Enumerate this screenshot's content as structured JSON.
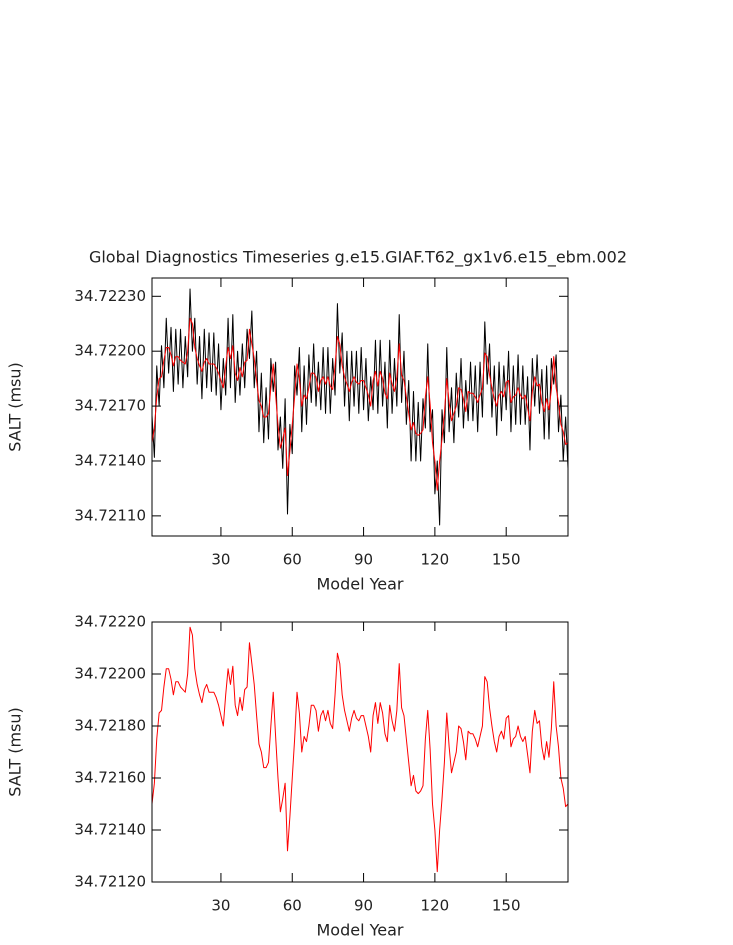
{
  "chart_data": [
    {
      "type": "line",
      "title": "Global Diagnostics Timeseries g.e15.GIAF.T62_gx1v6.e15_ebm.002",
      "xlabel": "Model Year",
      "ylabel": "SALT (msu)",
      "xlim": [
        1,
        176
      ],
      "xticks": [
        30,
        60,
        90,
        120,
        150
      ],
      "ylim": [
        34.72099,
        34.7224
      ],
      "yticks": [
        {
          "value": 34.7211,
          "label": "34.72110"
        },
        {
          "value": 34.7214,
          "label": "34.72140"
        },
        {
          "value": 34.7217,
          "label": "34.72170"
        },
        {
          "value": 34.722,
          "label": "34.72200"
        },
        {
          "value": 34.7223,
          "label": "34.72230"
        }
      ],
      "x": [
        1,
        2,
        3,
        4,
        5,
        6,
        7,
        8,
        9,
        10,
        11,
        12,
        13,
        14,
        15,
        16,
        17,
        18,
        19,
        20,
        21,
        22,
        23,
        24,
        25,
        26,
        27,
        28,
        29,
        30,
        31,
        32,
        33,
        34,
        35,
        36,
        37,
        38,
        39,
        40,
        41,
        42,
        43,
        44,
        45,
        46,
        47,
        48,
        49,
        50,
        51,
        52,
        53,
        54,
        55,
        56,
        57,
        58,
        59,
        60,
        61,
        62,
        63,
        64,
        65,
        66,
        67,
        68,
        69,
        70,
        71,
        72,
        73,
        74,
        75,
        76,
        77,
        78,
        79,
        80,
        81,
        82,
        83,
        84,
        85,
        86,
        87,
        88,
        89,
        90,
        91,
        92,
        93,
        94,
        95,
        96,
        97,
        98,
        99,
        100,
        101,
        102,
        103,
        104,
        105,
        106,
        107,
        108,
        109,
        110,
        111,
        112,
        113,
        114,
        115,
        116,
        117,
        118,
        119,
        120,
        121,
        122,
        123,
        124,
        125,
        126,
        127,
        128,
        129,
        130,
        131,
        132,
        133,
        134,
        135,
        136,
        137,
        138,
        139,
        140,
        141,
        142,
        143,
        144,
        145,
        146,
        147,
        148,
        149,
        150,
        151,
        152,
        153,
        154,
        155,
        156,
        157,
        158,
        159,
        160,
        161,
        162,
        163,
        164,
        165,
        166,
        167,
        168,
        169,
        170,
        171,
        172,
        173,
        174,
        175,
        176
      ],
      "series": [
        {
          "color": "#000000",
          "values": [
            34.72165,
            34.72142,
            34.72192,
            34.7217,
            34.72203,
            34.7218,
            34.72218,
            34.72188,
            34.72213,
            34.72178,
            34.72212,
            34.72182,
            34.72212,
            34.7218,
            34.72208,
            34.72186,
            34.72234,
            34.722,
            34.72218,
            34.72182,
            34.72208,
            34.72174,
            34.72212,
            34.7218,
            34.7221,
            34.72178,
            34.7221,
            34.72176,
            34.72204,
            34.72168,
            34.72196,
            34.72176,
            34.72218,
            34.7218,
            34.7222,
            34.72172,
            34.722,
            34.72176,
            34.72204,
            34.7218,
            34.72212,
            34.72196,
            34.72222,
            34.7218,
            34.722,
            34.72156,
            34.72188,
            34.7215,
            34.7218,
            34.72152,
            34.72196,
            34.72178,
            34.72194,
            34.72146,
            34.72164,
            34.72136,
            34.72174,
            34.72111,
            34.7216,
            34.72144,
            34.72192,
            34.72176,
            34.72202,
            34.72156,
            34.72192,
            34.7216,
            34.72198,
            34.72172,
            34.72204,
            34.7217,
            34.72194,
            34.72168,
            34.72202,
            34.72166,
            34.72202,
            34.72166,
            34.72196,
            34.72176,
            34.72226,
            34.72188,
            34.7221,
            34.7217,
            34.722,
            34.72162,
            34.722,
            34.7217,
            34.722,
            34.72166,
            34.72202,
            34.72168,
            34.72196,
            34.72162,
            34.72186,
            34.72168,
            34.72206,
            34.72166,
            34.72206,
            34.7217,
            34.72194,
            34.72158,
            34.72206,
            34.72166,
            34.72196,
            34.7217,
            34.7222,
            34.72172,
            34.722,
            34.7216,
            34.72184,
            34.7214,
            34.72178,
            34.7214,
            34.72172,
            34.7214,
            34.72174,
            34.72158,
            34.72204,
            34.72156,
            34.72168,
            34.72122,
            34.7214,
            34.72105,
            34.72168,
            34.7215,
            34.72202,
            34.72156,
            34.7218,
            34.7215,
            34.72188,
            34.72164,
            34.72196,
            34.72158,
            34.72184,
            34.72162,
            34.72194,
            34.72162,
            34.72192,
            34.72156,
            34.72194,
            34.72164,
            34.72216,
            34.72182,
            34.72204,
            34.72164,
            34.72192,
            34.72154,
            34.72194,
            34.72162,
            34.72192,
            34.72168,
            34.722,
            34.72156,
            34.72192,
            34.7216,
            34.72198,
            34.7216,
            34.72192,
            34.7216,
            34.72186,
            34.72146,
            34.72196,
            34.7217,
            34.72198,
            34.72166,
            34.7219,
            34.72152,
            34.72192,
            34.72152,
            34.72196,
            34.72182,
            34.72198,
            34.72156,
            34.72176,
            34.7214,
            34.72164,
            34.72136
          ]
        },
        {
          "color": "#ff0000",
          "values": [
            34.7215,
            34.72158,
            34.72175,
            34.72185,
            34.72186,
            34.72195,
            34.72202,
            34.72202,
            34.72198,
            34.72192,
            34.72197,
            34.72197,
            34.72195,
            34.72194,
            34.72193,
            34.722,
            34.72218,
            34.72215,
            34.72202,
            34.72196,
            34.72192,
            34.72189,
            34.72194,
            34.72196,
            34.72193,
            34.72193,
            34.72193,
            34.72191,
            34.72188,
            34.72184,
            34.7218,
            34.72192,
            34.72202,
            34.72196,
            34.72203,
            34.72188,
            34.72184,
            34.72191,
            34.72186,
            34.72194,
            34.72195,
            34.72212,
            34.72204,
            34.72196,
            34.72184,
            34.72173,
            34.7217,
            34.72164,
            34.72164,
            34.72166,
            34.7218,
            34.72193,
            34.72176,
            34.7216,
            34.72147,
            34.72152,
            34.72158,
            34.72132,
            34.72145,
            34.7216,
            34.72175,
            34.72193,
            34.72185,
            34.7217,
            34.72176,
            34.72174,
            34.7218,
            34.72188,
            34.72188,
            34.72186,
            34.72178,
            34.72184,
            34.72186,
            34.72182,
            34.72186,
            34.72181,
            34.72179,
            34.72192,
            34.72208,
            34.72204,
            34.72192,
            34.72186,
            34.72182,
            34.72178,
            34.72183,
            34.72186,
            34.72183,
            34.72182,
            34.72184,
            34.72184,
            34.7218,
            34.72176,
            34.7217,
            34.72184,
            34.72189,
            34.72181,
            34.72189,
            34.72185,
            34.72177,
            34.72174,
            34.72188,
            34.72182,
            34.72178,
            34.72186,
            34.72204,
            34.72187,
            34.72184,
            34.72175,
            34.72166,
            34.72157,
            34.72161,
            34.72155,
            34.72154,
            34.72155,
            34.72157,
            34.72175,
            34.72186,
            34.72171,
            34.7215,
            34.7214,
            34.72124,
            34.7214,
            34.72152,
            34.72166,
            34.72185,
            34.72172,
            34.72162,
            34.72166,
            34.7217,
            34.7218,
            34.72179,
            34.72174,
            34.72167,
            34.72178,
            34.72177,
            34.72177,
            34.72175,
            34.72172,
            34.72176,
            34.7218,
            34.72199,
            34.72197,
            34.72187,
            34.7218,
            34.72174,
            34.7217,
            34.72176,
            34.72178,
            34.72175,
            34.72183,
            34.72184,
            34.72172,
            34.72175,
            34.72176,
            34.7218,
            34.72176,
            34.72174,
            34.72176,
            34.72169,
            34.72162,
            34.72178,
            34.72186,
            34.72181,
            34.72182,
            34.72172,
            34.72167,
            34.72174,
            34.72168,
            34.72179,
            34.72197,
            34.7218,
            34.72172,
            34.7216,
            34.72156,
            34.72149,
            34.7215
          ]
        }
      ]
    },
    {
      "type": "line",
      "xlabel": "Model Year",
      "ylabel": "SALT (msu)",
      "xlim": [
        1,
        176
      ],
      "xticks": [
        30,
        60,
        90,
        120,
        150
      ],
      "ylim": [
        34.7212,
        34.7222
      ],
      "yticks": [
        {
          "value": 34.7212,
          "label": "34.72120"
        },
        {
          "value": 34.7214,
          "label": "34.72140"
        },
        {
          "value": 34.7216,
          "label": "34.72160"
        },
        {
          "value": 34.7218,
          "label": "34.72180"
        },
        {
          "value": 34.722,
          "label": "34.72200"
        },
        {
          "value": 34.7222,
          "label": "34.72220"
        }
      ],
      "x": [
        1,
        2,
        3,
        4,
        5,
        6,
        7,
        8,
        9,
        10,
        11,
        12,
        13,
        14,
        15,
        16,
        17,
        18,
        19,
        20,
        21,
        22,
        23,
        24,
        25,
        26,
        27,
        28,
        29,
        30,
        31,
        32,
        33,
        34,
        35,
        36,
        37,
        38,
        39,
        40,
        41,
        42,
        43,
        44,
        45,
        46,
        47,
        48,
        49,
        50,
        51,
        52,
        53,
        54,
        55,
        56,
        57,
        58,
        59,
        60,
        61,
        62,
        63,
        64,
        65,
        66,
        67,
        68,
        69,
        70,
        71,
        72,
        73,
        74,
        75,
        76,
        77,
        78,
        79,
        80,
        81,
        82,
        83,
        84,
        85,
        86,
        87,
        88,
        89,
        90,
        91,
        92,
        93,
        94,
        95,
        96,
        97,
        98,
        99,
        100,
        101,
        102,
        103,
        104,
        105,
        106,
        107,
        108,
        109,
        110,
        111,
        112,
        113,
        114,
        115,
        116,
        117,
        118,
        119,
        120,
        121,
        122,
        123,
        124,
        125,
        126,
        127,
        128,
        129,
        130,
        131,
        132,
        133,
        134,
        135,
        136,
        137,
        138,
        139,
        140,
        141,
        142,
        143,
        144,
        145,
        146,
        147,
        148,
        149,
        150,
        151,
        152,
        153,
        154,
        155,
        156,
        157,
        158,
        159,
        160,
        161,
        162,
        163,
        164,
        165,
        166,
        167,
        168,
        169,
        170,
        171,
        172,
        173,
        174,
        175,
        176
      ],
      "series": [
        {
          "color": "#ff0000",
          "values": [
            34.7215,
            34.72158,
            34.72175,
            34.72185,
            34.72186,
            34.72195,
            34.72202,
            34.72202,
            34.72198,
            34.72192,
            34.72197,
            34.72197,
            34.72195,
            34.72194,
            34.72193,
            34.722,
            34.72218,
            34.72215,
            34.72202,
            34.72196,
            34.72192,
            34.72189,
            34.72194,
            34.72196,
            34.72193,
            34.72193,
            34.72193,
            34.72191,
            34.72188,
            34.72184,
            34.7218,
            34.72192,
            34.72202,
            34.72196,
            34.72203,
            34.72188,
            34.72184,
            34.72191,
            34.72186,
            34.72194,
            34.72195,
            34.72212,
            34.72204,
            34.72196,
            34.72184,
            34.72173,
            34.7217,
            34.72164,
            34.72164,
            34.72166,
            34.7218,
            34.72193,
            34.72176,
            34.7216,
            34.72147,
            34.72152,
            34.72158,
            34.72132,
            34.72145,
            34.7216,
            34.72175,
            34.72193,
            34.72185,
            34.7217,
            34.72176,
            34.72174,
            34.7218,
            34.72188,
            34.72188,
            34.72186,
            34.72178,
            34.72184,
            34.72186,
            34.72182,
            34.72186,
            34.72181,
            34.72179,
            34.72192,
            34.72208,
            34.72204,
            34.72192,
            34.72186,
            34.72182,
            34.72178,
            34.72183,
            34.72186,
            34.72183,
            34.72182,
            34.72184,
            34.72184,
            34.7218,
            34.72176,
            34.7217,
            34.72184,
            34.72189,
            34.72181,
            34.72189,
            34.72185,
            34.72177,
            34.72174,
            34.72188,
            34.72182,
            34.72178,
            34.72186,
            34.72204,
            34.72187,
            34.72184,
            34.72175,
            34.72166,
            34.72157,
            34.72161,
            34.72155,
            34.72154,
            34.72155,
            34.72157,
            34.72175,
            34.72186,
            34.72171,
            34.7215,
            34.7214,
            34.72124,
            34.7214,
            34.72152,
            34.72166,
            34.72185,
            34.72172,
            34.72162,
            34.72166,
            34.7217,
            34.7218,
            34.72179,
            34.72174,
            34.72167,
            34.72178,
            34.72177,
            34.72177,
            34.72175,
            34.72172,
            34.72176,
            34.7218,
            34.72199,
            34.72197,
            34.72187,
            34.7218,
            34.72174,
            34.7217,
            34.72176,
            34.72178,
            34.72175,
            34.72183,
            34.72184,
            34.72172,
            34.72175,
            34.72176,
            34.7218,
            34.72176,
            34.72174,
            34.72176,
            34.72169,
            34.72162,
            34.72178,
            34.72186,
            34.72181,
            34.72182,
            34.72172,
            34.72167,
            34.72174,
            34.72168,
            34.72179,
            34.72197,
            34.7218,
            34.72172,
            34.7216,
            34.72156,
            34.72149,
            34.7215
          ]
        }
      ]
    }
  ]
}
